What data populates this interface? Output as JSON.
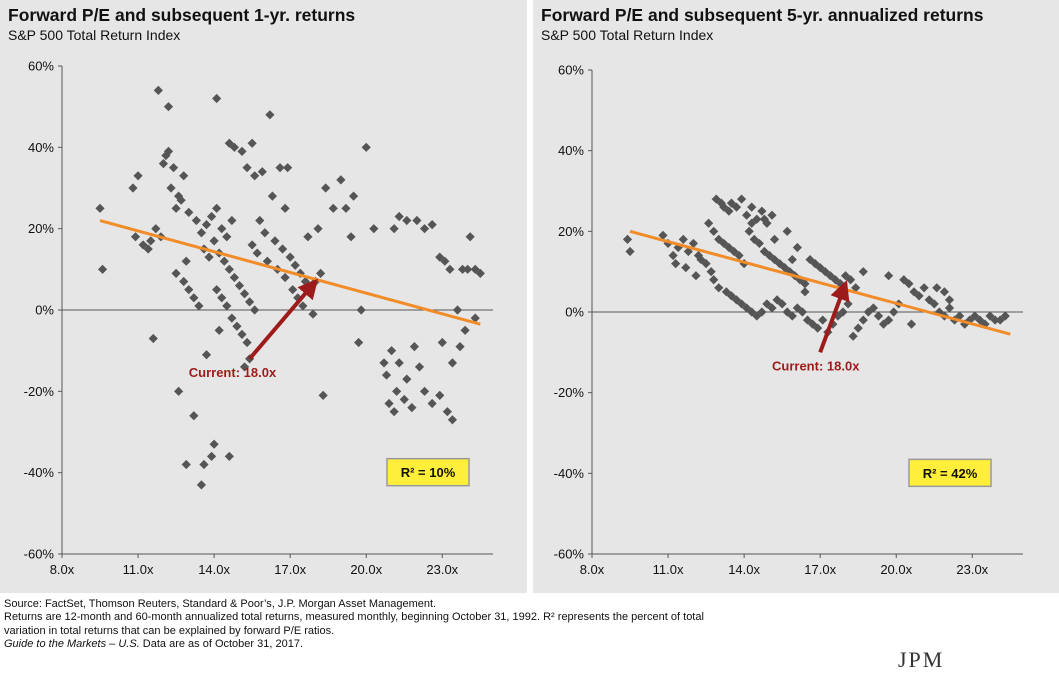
{
  "chart_data": [
    {
      "type": "scatter",
      "title": "Forward P/E and subsequent 1-yr. returns",
      "subtitle": "S&P 500 Total Return Index",
      "xlabel": "",
      "ylabel": "",
      "xlim": [
        8,
        25
      ],
      "ylim": [
        -60,
        60
      ],
      "xticks": [
        8,
        11,
        14,
        17,
        20,
        23
      ],
      "xtick_labels": [
        "8.0x",
        "11.0x",
        "14.0x",
        "17.0x",
        "20.0x",
        "23.0x"
      ],
      "yticks": [
        60,
        40,
        20,
        0,
        -20,
        -40,
        -60
      ],
      "ytick_labels": [
        "60%",
        "40%",
        "20%",
        "0%",
        "-20%",
        "-40%",
        "-60%"
      ],
      "trendline": {
        "x": [
          9.5,
          24.5
        ],
        "y": [
          22,
          -3.5
        ],
        "color": "#f28c28"
      },
      "annotation": {
        "text": "Current: 18.0x",
        "x": 18.0,
        "y": 7,
        "label_x": 15.2,
        "label_y": -12,
        "color": "#9e1b1b"
      },
      "r2_label": "R² = 10%",
      "marker_color": "#555555",
      "points": [
        [
          9.5,
          25
        ],
        [
          9.6,
          10
        ],
        [
          10.8,
          30
        ],
        [
          11,
          33
        ],
        [
          10.9,
          18
        ],
        [
          11.2,
          16
        ],
        [
          11.4,
          15
        ],
        [
          11.5,
          17
        ],
        [
          11.7,
          20
        ],
        [
          11.9,
          18
        ],
        [
          12,
          36
        ],
        [
          12.1,
          38
        ],
        [
          12.2,
          39
        ],
        [
          12.4,
          35
        ],
        [
          12.3,
          30
        ],
        [
          12.6,
          28
        ],
        [
          12.5,
          25
        ],
        [
          12.8,
          33
        ],
        [
          12.7,
          27
        ],
        [
          13,
          24
        ],
        [
          11.8,
          54
        ],
        [
          12.2,
          50
        ],
        [
          13.3,
          22
        ],
        [
          13.5,
          19
        ],
        [
          13.7,
          21
        ],
        [
          13.9,
          23
        ],
        [
          14.1,
          25
        ],
        [
          14.3,
          20
        ],
        [
          14.5,
          18
        ],
        [
          14.7,
          22
        ],
        [
          12.5,
          9
        ],
        [
          12.8,
          7
        ],
        [
          13,
          5
        ],
        [
          13.2,
          3
        ],
        [
          13.4,
          1
        ],
        [
          12.9,
          12
        ],
        [
          13.6,
          15
        ],
        [
          13.8,
          13
        ],
        [
          14,
          17
        ],
        [
          14.2,
          14
        ],
        [
          14.4,
          12
        ],
        [
          14.6,
          10
        ],
        [
          14.8,
          8
        ],
        [
          15,
          6
        ],
        [
          15.2,
          4
        ],
        [
          15.4,
          2
        ],
        [
          15.6,
          0
        ],
        [
          14.1,
          5
        ],
        [
          14.3,
          3
        ],
        [
          14.5,
          1
        ],
        [
          14.7,
          -2
        ],
        [
          14.9,
          -4
        ],
        [
          15.1,
          -6
        ],
        [
          15.3,
          -8
        ],
        [
          14.2,
          -5
        ],
        [
          13.7,
          -11
        ],
        [
          15.4,
          -12
        ],
        [
          15.2,
          -14
        ],
        [
          11.6,
          -7
        ],
        [
          12.6,
          -20
        ],
        [
          13.2,
          -26
        ],
        [
          12.9,
          -38
        ],
        [
          13.6,
          -38
        ],
        [
          13.9,
          -36
        ],
        [
          14,
          -33
        ],
        [
          13.5,
          -43
        ],
        [
          14.6,
          -36
        ],
        [
          14.1,
          52
        ],
        [
          14.6,
          41
        ],
        [
          14.8,
          40
        ],
        [
          15.1,
          39
        ],
        [
          15.5,
          41
        ],
        [
          15.3,
          35
        ],
        [
          15.6,
          33
        ],
        [
          15.9,
          34
        ],
        [
          16.2,
          48
        ],
        [
          16.6,
          35
        ],
        [
          16.9,
          35
        ],
        [
          16.3,
          28
        ],
        [
          16.8,
          25
        ],
        [
          15.8,
          22
        ],
        [
          16,
          19
        ],
        [
          16.4,
          17
        ],
        [
          16.7,
          15
        ],
        [
          17,
          13
        ],
        [
          17.2,
          11
        ],
        [
          17.4,
          9
        ],
        [
          17.6,
          7
        ],
        [
          17.8,
          5
        ],
        [
          18,
          7
        ],
        [
          18.2,
          9
        ],
        [
          16.5,
          10
        ],
        [
          16.8,
          8
        ],
        [
          17.1,
          5
        ],
        [
          17.3,
          3
        ],
        [
          17.5,
          1
        ],
        [
          17.9,
          -1
        ],
        [
          16.1,
          12
        ],
        [
          15.7,
          14
        ],
        [
          15.5,
          16
        ],
        [
          18.4,
          30
        ],
        [
          18.7,
          25
        ],
        [
          19,
          32
        ],
        [
          19.2,
          25
        ],
        [
          19.5,
          28
        ],
        [
          18.1,
          20
        ],
        [
          17.7,
          18
        ],
        [
          19.4,
          18
        ],
        [
          20,
          40
        ],
        [
          20.3,
          20
        ],
        [
          19.8,
          0
        ],
        [
          19.7,
          -8
        ],
        [
          18.3,
          -21
        ],
        [
          20.7,
          -13
        ],
        [
          20.8,
          -16
        ],
        [
          21,
          -10
        ],
        [
          21.3,
          -13
        ],
        [
          21.6,
          -17
        ],
        [
          21.9,
          -9
        ],
        [
          22.1,
          -14
        ],
        [
          21.2,
          -20
        ],
        [
          21.5,
          -22
        ],
        [
          21.8,
          -24
        ],
        [
          20.9,
          -23
        ],
        [
          21.1,
          -25
        ],
        [
          22.3,
          -20
        ],
        [
          22.6,
          -23
        ],
        [
          22.9,
          -21
        ],
        [
          23.2,
          -25
        ],
        [
          23.4,
          -27
        ],
        [
          21.6,
          22
        ],
        [
          22,
          22
        ],
        [
          22.3,
          20
        ],
        [
          22.6,
          21
        ],
        [
          22.9,
          13
        ],
        [
          23.1,
          12
        ],
        [
          23.3,
          10
        ],
        [
          21.1,
          20
        ],
        [
          21.3,
          23
        ],
        [
          23.6,
          0
        ],
        [
          23.8,
          10
        ],
        [
          24,
          10
        ],
        [
          24.3,
          10
        ],
        [
          24.5,
          9
        ],
        [
          24.1,
          18
        ],
        [
          24.3,
          -2
        ],
        [
          23.9,
          -5
        ],
        [
          23.7,
          -9
        ],
        [
          23.4,
          -13
        ],
        [
          23,
          -8
        ]
      ]
    },
    {
      "type": "scatter",
      "title": "Forward P/E and subsequent 5-yr. annualized returns",
      "subtitle": "S&P 500 Total Return Index",
      "xlabel": "",
      "ylabel": "",
      "xlim": [
        8,
        25
      ],
      "ylim": [
        -60,
        60
      ],
      "xticks": [
        8,
        11,
        14,
        17,
        20,
        23
      ],
      "xtick_labels": [
        "8.0x",
        "11.0x",
        "14.0x",
        "17.0x",
        "20.0x",
        "23.0x"
      ],
      "yticks": [
        60,
        40,
        20,
        0,
        -20,
        -40,
        -60
      ],
      "ytick_labels": [
        "60%",
        "40%",
        "20%",
        "0%",
        "-20%",
        "-40%",
        "-60%"
      ],
      "trendline": {
        "x": [
          9.5,
          24.5
        ],
        "y": [
          20,
          -5.5
        ],
        "color": "#f28c28"
      },
      "annotation": {
        "text": "Current: 18.0x",
        "x": 18.0,
        "y": 7,
        "label_x": 16.8,
        "label_y": -10,
        "color": "#9e1b1b"
      },
      "r2_label": "R² = 42%",
      "marker_color": "#555555",
      "points": [
        [
          9.4,
          18
        ],
        [
          9.5,
          15
        ],
        [
          10.8,
          19
        ],
        [
          11,
          17
        ],
        [
          11.2,
          14
        ],
        [
          11.4,
          16
        ],
        [
          11.6,
          18
        ],
        [
          11.8,
          15
        ],
        [
          12,
          17
        ],
        [
          12.2,
          14
        ],
        [
          11.3,
          12
        ],
        [
          11.7,
          11
        ],
        [
          12.1,
          9
        ],
        [
          12.3,
          13
        ],
        [
          12.5,
          12
        ],
        [
          12.7,
          10
        ],
        [
          12.8,
          8
        ],
        [
          13,
          6
        ],
        [
          12.9,
          28
        ],
        [
          13.1,
          27
        ],
        [
          13.2,
          26
        ],
        [
          13.4,
          25
        ],
        [
          13.5,
          27
        ],
        [
          13.7,
          26
        ],
        [
          13.9,
          28
        ],
        [
          14.1,
          24
        ],
        [
          14.3,
          26
        ],
        [
          14.5,
          23
        ],
        [
          14.7,
          25
        ],
        [
          14.8,
          23
        ],
        [
          12.6,
          22
        ],
        [
          12.8,
          20
        ],
        [
          13,
          18
        ],
        [
          13.2,
          17
        ],
        [
          13.4,
          16
        ],
        [
          13.6,
          15
        ],
        [
          13.8,
          14
        ],
        [
          14,
          12
        ],
        [
          14.2,
          20
        ],
        [
          14.4,
          18
        ],
        [
          14.6,
          17
        ],
        [
          14.8,
          15
        ],
        [
          15,
          14
        ],
        [
          15.2,
          13
        ],
        [
          15.4,
          12
        ],
        [
          15.6,
          11
        ],
        [
          15.8,
          10
        ],
        [
          16,
          9
        ],
        [
          16.2,
          8
        ],
        [
          16.4,
          7
        ],
        [
          16.6,
          13
        ],
        [
          16.8,
          12
        ],
        [
          17,
          11
        ],
        [
          17.2,
          10
        ],
        [
          17.4,
          9
        ],
        [
          17.6,
          8
        ],
        [
          17.8,
          7
        ],
        [
          18,
          9
        ],
        [
          18.2,
          8
        ],
        [
          18.4,
          6
        ],
        [
          13.3,
          5
        ],
        [
          13.5,
          4
        ],
        [
          13.7,
          3
        ],
        [
          13.9,
          2
        ],
        [
          14.1,
          1
        ],
        [
          14.3,
          0
        ],
        [
          14.5,
          -1
        ],
        [
          14.7,
          0
        ],
        [
          14.9,
          2
        ],
        [
          15.1,
          1
        ],
        [
          15.3,
          3
        ],
        [
          15.5,
          2
        ],
        [
          15.7,
          0
        ],
        [
          15.9,
          -1
        ],
        [
          16.1,
          1
        ],
        [
          16.3,
          0
        ],
        [
          16.5,
          -2
        ],
        [
          16.7,
          -3
        ],
        [
          16.9,
          -4
        ],
        [
          17.1,
          -2
        ],
        [
          17.3,
          -5
        ],
        [
          17.5,
          -3
        ],
        [
          17.7,
          -1
        ],
        [
          17.9,
          0
        ],
        [
          18.1,
          2
        ],
        [
          18.3,
          -6
        ],
        [
          18.5,
          -4
        ],
        [
          18.7,
          -2
        ],
        [
          18.9,
          0
        ],
        [
          19.1,
          1
        ],
        [
          19.3,
          -1
        ],
        [
          19.5,
          -3
        ],
        [
          19.7,
          -2
        ],
        [
          19.9,
          0
        ],
        [
          20.1,
          2
        ],
        [
          20.3,
          8
        ],
        [
          20.5,
          7
        ],
        [
          20.7,
          5
        ],
        [
          20.9,
          4
        ],
        [
          21.1,
          6
        ],
        [
          21.3,
          3
        ],
        [
          21.5,
          2
        ],
        [
          21.7,
          0
        ],
        [
          21.9,
          -1
        ],
        [
          22.1,
          1
        ],
        [
          22.3,
          -2
        ],
        [
          22.5,
          -1
        ],
        [
          22.7,
          -3
        ],
        [
          22.9,
          -2
        ],
        [
          23.1,
          -1
        ],
        [
          23.3,
          -2
        ],
        [
          23.5,
          -3
        ],
        [
          23.7,
          -1
        ],
        [
          23.9,
          -2
        ],
        [
          24.1,
          -2
        ],
        [
          24.3,
          -1
        ],
        [
          21.6,
          6
        ],
        [
          21.9,
          5
        ],
        [
          22.1,
          3
        ],
        [
          20.6,
          -3
        ],
        [
          19.7,
          9
        ],
        [
          18.7,
          10
        ],
        [
          15.9,
          13
        ],
        [
          16.1,
          16
        ],
        [
          15.2,
          18
        ],
        [
          15.7,
          20
        ],
        [
          14.9,
          22
        ],
        [
          15.1,
          24
        ],
        [
          14.3,
          22
        ],
        [
          16.4,
          5
        ]
      ]
    }
  ],
  "footer": {
    "line1": "Source: FactSet, Thomson Reuters, Standard & Poor’s, J.P. Morgan Asset Management.",
    "line2": "Returns are 12-month and 60-month annualized total returns, measured monthly, beginning October 31, 1992. R² represents the percent of total",
    "line3": "variation in total returns that can be explained by forward P/E ratios.",
    "line4_italic": "Guide to the Markets – U.S.",
    "line4_rest": " Data are as of October 31, 2017."
  },
  "logo_text": "JPM"
}
